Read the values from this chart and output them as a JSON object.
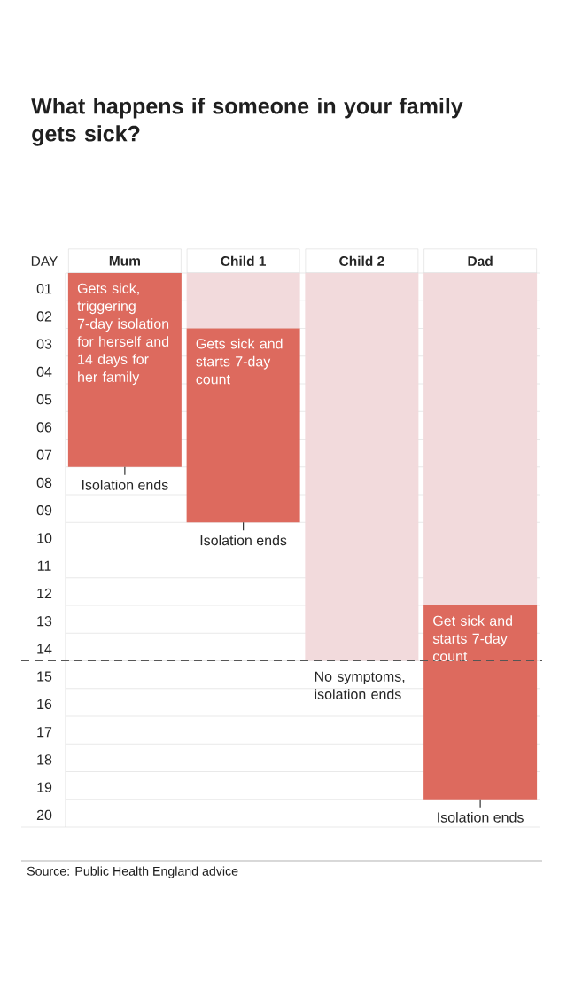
{
  "chart_data": {
    "type": "bar",
    "title": "What happens if someone in your family gets sick?",
    "ylabel": "DAY",
    "categories": [
      "Mum",
      "Child 1",
      "Child 2",
      "Dad"
    ],
    "stacked": true,
    "series": [
      {
        "color": "#f2dadc",
        "values": [
          null,
          2,
          14,
          12
        ]
      },
      {
        "color": "#dd6a5e",
        "values": [
          7,
          7,
          null,
          7
        ]
      }
    ],
    "ylim": [
      20,
      0
    ],
    "yticks": [
      {
        "value": 0,
        "label": null
      },
      {
        "value": 1,
        "label": "01"
      },
      {
        "value": 2,
        "label": "02"
      },
      {
        "value": 3,
        "label": "03"
      },
      {
        "value": 4,
        "label": "04"
      },
      {
        "value": 5,
        "label": "05"
      },
      {
        "value": 6,
        "label": "06"
      },
      {
        "value": 7,
        "label": "07"
      },
      {
        "value": 8,
        "label": "08"
      },
      {
        "value": 9,
        "label": "09"
      },
      10,
      11,
      12,
      13,
      14,
      15,
      16,
      17,
      18,
      19,
      20
    ],
    "grid": "y",
    "ref_lines": [
      {
        "axis": "y",
        "value": 14,
        "line_style": "dashed",
        "color": "#555555"
      }
    ],
    "annotations": [
      {
        "text": "Gets sick, triggering 7-day isolation for herself and 14 days for her family",
        "x": "Mum",
        "y": 0
      },
      {
        "text": "Isolation ends",
        "x": "Mum",
        "y": 7
      },
      {
        "text": "Gets sick and starts 7-day count",
        "x": "Child 1",
        "y": 2
      },
      {
        "text": "Isolation ends",
        "x": "Child 1",
        "y": 9
      },
      {
        "text": "No symptoms, isolation ends",
        "x": "Child 2",
        "y": 14
      },
      {
        "text": "Get sick and starts 7-day count",
        "x": "Dad",
        "y": 12
      },
      {
        "text": "Isolation ends",
        "x": "Dad",
        "y": 19
      },
      "Source: Public Health England advice"
    ]
  }
}
